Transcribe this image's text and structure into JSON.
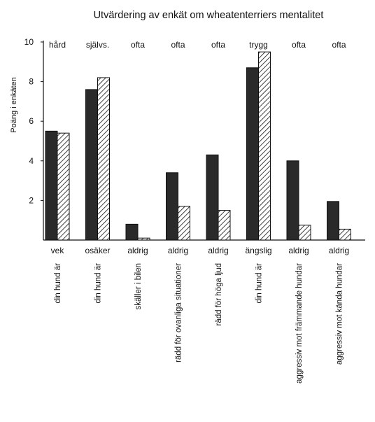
{
  "chart_data": {
    "type": "bar",
    "title": "Utvärdering av enkät om wheatenterriers mentalitet",
    "ylabel": "Poäng i enkäten",
    "xlabel": "",
    "ylim": [
      0,
      10
    ],
    "yticks": [
      2,
      4,
      6,
      8,
      10
    ],
    "grid": false,
    "legend": "none",
    "categories": [
      "din hund är",
      "din hund är",
      "skäller i bilen",
      "rädd för ovanliga situationer",
      "rädd för höga ljud",
      "din hund är",
      "aggressiv mot främmande hundar",
      "aggressiv mot kända hundar"
    ],
    "top_labels": [
      "hård",
      "självs.",
      "ofta",
      "ofta",
      "ofta",
      "trygg",
      "ofta",
      "ofta"
    ],
    "bottom_labels": [
      "vek",
      "osäker",
      "aldrig",
      "aldrig",
      "aldrig",
      "ängslig",
      "aldrig",
      "aldrig"
    ],
    "series": [
      {
        "values": [
          5.5,
          7.6,
          0.8,
          3.4,
          4.3,
          8.7,
          4.0,
          1.95
        ],
        "color": "#2a2a2a",
        "pattern": "solid"
      },
      {
        "values": [
          5.4,
          8.2,
          0.1,
          1.7,
          1.5,
          9.5,
          0.75,
          0.55
        ],
        "color": "#ffffff",
        "pattern": "hatch"
      }
    ]
  }
}
